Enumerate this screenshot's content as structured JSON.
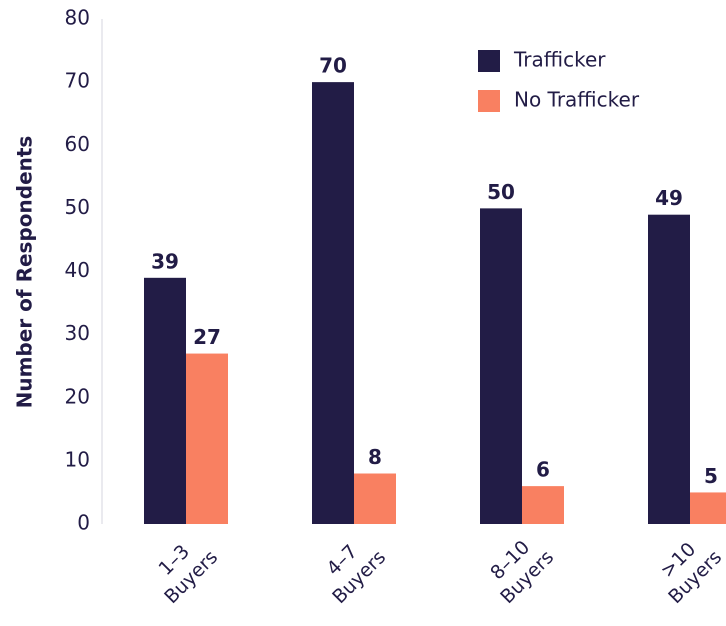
{
  "chart_data": {
    "type": "bar",
    "y_label": "Number of Respondents",
    "categories": [
      "1–3\nBuyers",
      "4–7\nBuyers",
      "8–10\nBuyers",
      ">10\nBuyers"
    ],
    "series": [
      {
        "name": "Trafficker",
        "color": "#221c46",
        "values": [
          39,
          70,
          50,
          49
        ]
      },
      {
        "name": "No Trafficker",
        "color": "#f98061",
        "values": [
          27,
          8,
          6,
          5
        ]
      }
    ],
    "ylim": [
      0,
      80
    ],
    "yticks": [
      0,
      10,
      20,
      30,
      40,
      50,
      60,
      70,
      80
    ],
    "legend": "top-right"
  }
}
